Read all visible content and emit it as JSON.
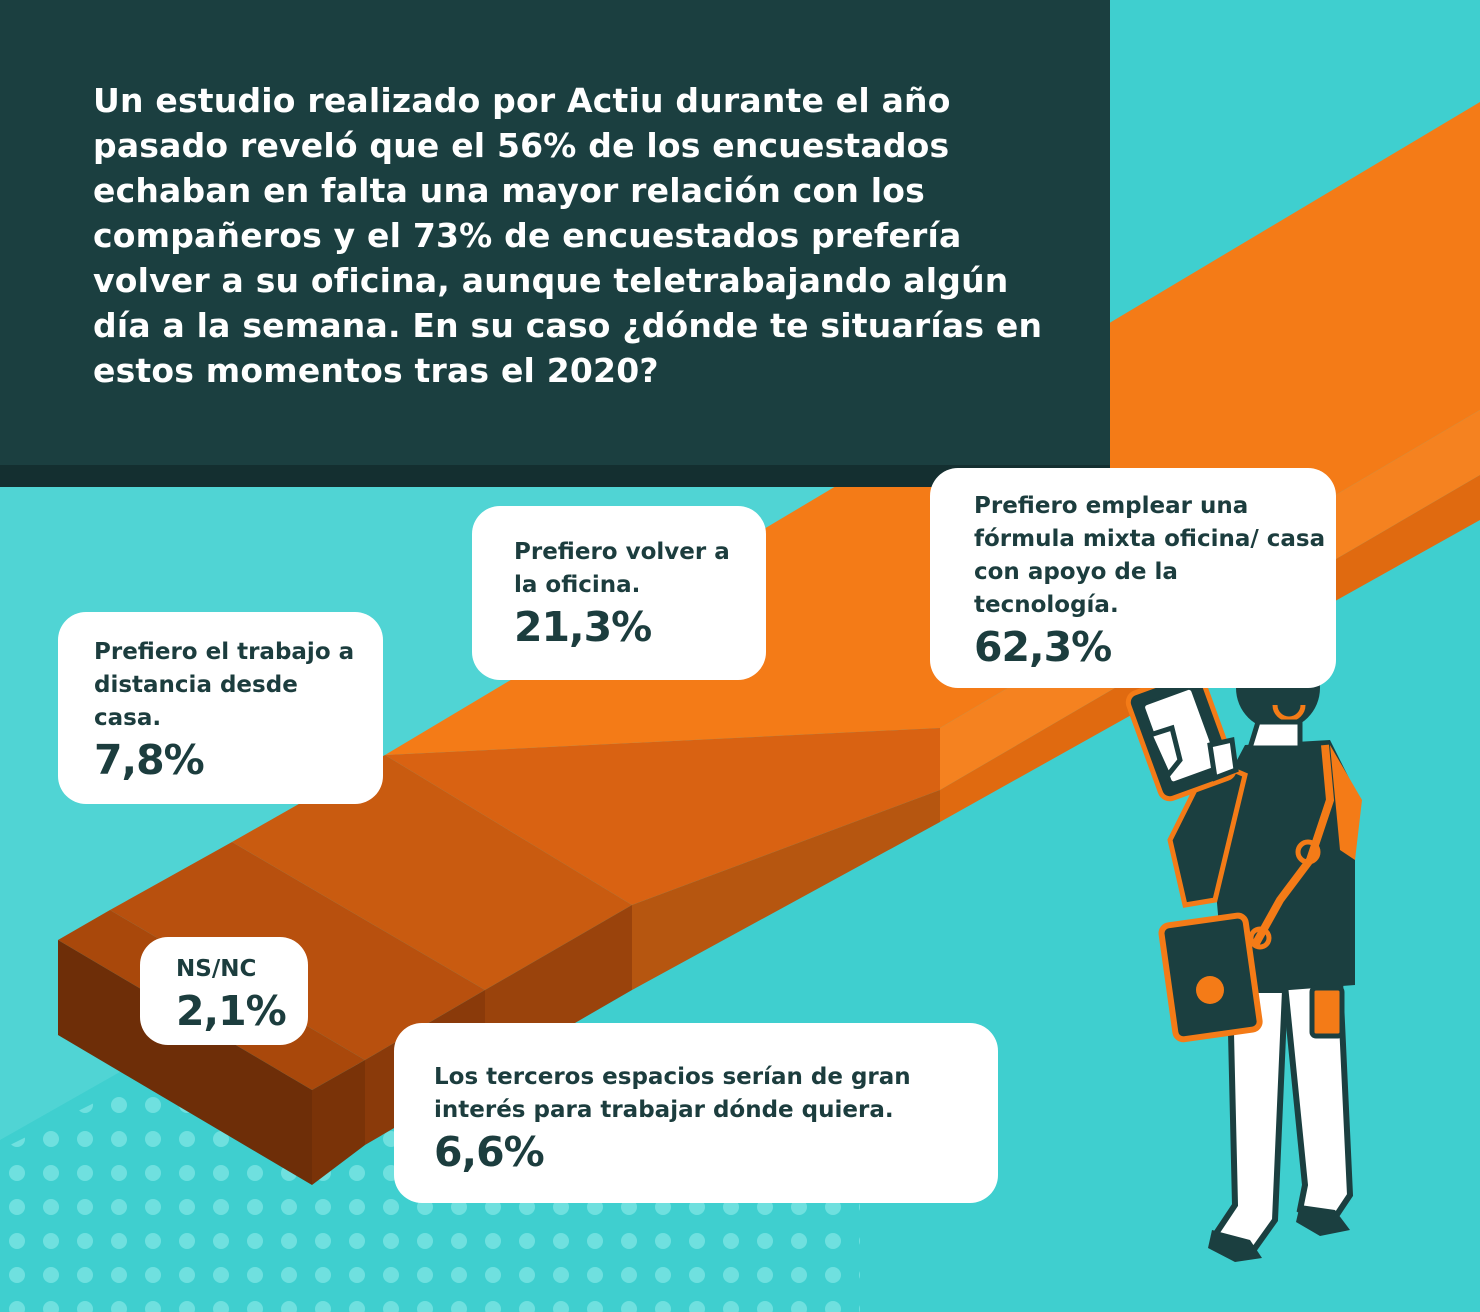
{
  "intro_text": "Un estudio realizado por Actiu durante el año pasado reveló que el 56% de los encuestados echaban en falta una mayor relación con los compañeros y el 73% de encuestados prefería volver a su oficina, aunque teletrabajando algún día a la semana. En su caso ¿dónde te situarías en estos momentos tras el 2020?",
  "colors": {
    "background": "#3fcfcf",
    "header": "#1b3f40",
    "bar_top_light": "#f07a16",
    "bar_top_dark": "#a9480b",
    "bubble": "#ffffff",
    "text_dark": "#1c3d3e"
  },
  "chart_data": {
    "type": "bar",
    "categories": [
      "NS/NC",
      "Los terceros espacios serían de gran interés para trabajar dónde quiera.",
      "Prefiero el trabajo a distancia desde casa.",
      "Prefiero volver a la oficina.",
      "Prefiero emplear una fórmula mixta oficina/ casa con apoyo de la tecnología."
    ],
    "values": [
      2.1,
      6.6,
      7.8,
      21.3,
      62.3
    ],
    "value_labels": [
      "2,1%",
      "6,6%",
      "7,8%",
      "21,3%",
      "62,3%"
    ],
    "unit": "%",
    "orientation": "isometric staircase, ascending to the upper right",
    "bubbles": [
      {
        "label": "Prefiero el trabajo a distancia desde casa.",
        "value": "7,8%"
      },
      {
        "label": "Prefiero volver a la oficina.",
        "value": "21,3%"
      },
      {
        "label": "Prefiero emplear una fórmula mixta oficina/ casa con apoyo de la tecnología.",
        "value": "62,3%"
      },
      {
        "label": "NS/NC",
        "value": "2,1%"
      },
      {
        "label": "Los terceros espacios serían de gran interés para trabajar dónde quiera.",
        "value": "6,6%"
      }
    ]
  },
  "illustration": {
    "subject": "person-with-tablet-illustration",
    "icon": "tablet-icon"
  }
}
